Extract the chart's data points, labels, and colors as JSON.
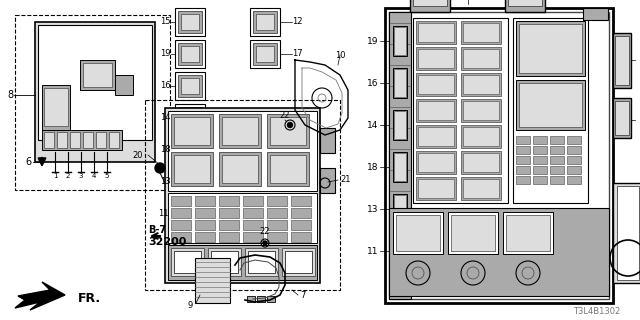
{
  "bg_color": "#ffffff",
  "line_color": "#000000",
  "dark_gray": "#444444",
  "gray_color": "#777777",
  "light_gray": "#aaaaaa",
  "very_light_gray": "#dddddd",
  "diagram_id": "T3L4B1302"
}
